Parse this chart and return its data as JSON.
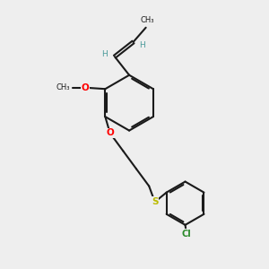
{
  "bg_color": "#eeeeee",
  "bond_color": "#1a1a1a",
  "bond_width": 1.5,
  "dbo": 0.055,
  "O_color": "#ff0000",
  "S_color": "#bbbb00",
  "Cl_color": "#2a8a2a",
  "H_color": "#4a9a9a",
  "text_color": "#1a1a1a",
  "figsize": [
    3.0,
    3.0
  ],
  "dpi": 100,
  "xlim": [
    0,
    10
  ],
  "ylim": [
    0,
    10
  ]
}
